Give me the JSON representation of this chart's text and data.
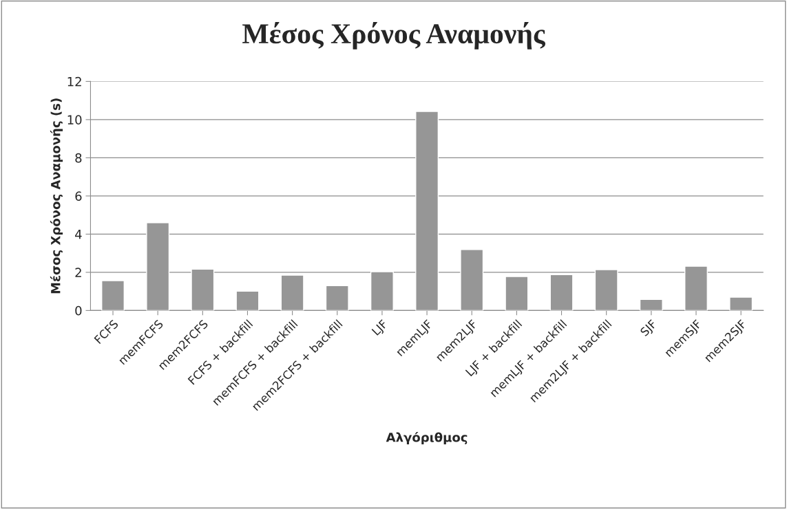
{
  "chart_data": {
    "type": "bar",
    "title": "Μέσος Χρόνος Αναμονής",
    "xlabel": "Αλγόριθμος",
    "ylabel": "Μέσος Χρόνος Αναμονής (s)",
    "categories": [
      "FCFS",
      "memFCFS",
      "mem2FCFS",
      "FCFS + backfill",
      "memFCFS + backfill",
      "mem2FCFS + backfill",
      "LJF",
      "memLJF",
      "mem2LJF",
      "LJF + backfill",
      "memLJF + backfill",
      "mem2LJF + backfill",
      "SJF",
      "memSJF",
      "mem2SJF"
    ],
    "values": [
      1.56,
      4.6,
      2.17,
      1.01,
      1.85,
      1.3,
      2.03,
      10.43,
      3.19,
      1.78,
      1.88,
      2.14,
      0.58,
      2.32,
      0.7
    ],
    "color": "#969696",
    "ylim": [
      0,
      12
    ],
    "yticks": [
      0,
      2,
      4,
      6,
      8,
      10,
      12
    ],
    "grid": "y",
    "legend": false
  }
}
